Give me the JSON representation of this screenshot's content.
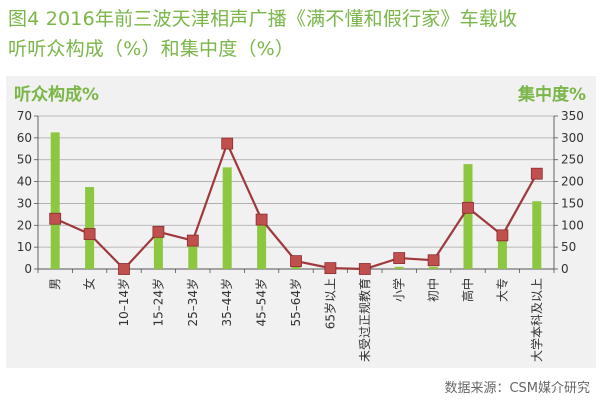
{
  "figure": {
    "title_line1": "图4  2016年前三波天津相声广播《满不懂和假行家》车载收",
    "title_line2": "听听众构成（%）和集中度（%）",
    "source": "数据来源：CSM媒介研究"
  },
  "colors": {
    "title": "#7ab648",
    "bar": "#8dc63f",
    "line": "#a0393b",
    "marker": "#c0504d",
    "plot_bg": "#f1f1f1"
  },
  "chart_data": {
    "type": "bar+line",
    "left_axis_label": "听众构成%",
    "right_axis_label": "集中度%",
    "left_ylim": [
      0,
      70
    ],
    "left_ticks": [
      0,
      10,
      20,
      30,
      40,
      50,
      60,
      70
    ],
    "right_ylim": [
      0,
      350
    ],
    "right_ticks": [
      0,
      50,
      100,
      150,
      200,
      250,
      300,
      350
    ],
    "categories": [
      "男",
      "女",
      "10–14岁",
      "15–24岁",
      "25–34岁",
      "35–44岁",
      "45–54岁",
      "55–64岁",
      "65岁以上",
      "未受过正规教育",
      "小学",
      "初中",
      "高中",
      "大专",
      "大学本科及以上"
    ],
    "series": [
      {
        "axis": "left",
        "kind": "bar",
        "values": [
          62.5,
          37.5,
          0,
          16,
          13,
          46.5,
          20,
          1.5,
          0,
          0,
          1,
          1,
          48,
          14,
          31
        ]
      },
      {
        "axis": "right",
        "kind": "line",
        "values": [
          115,
          80,
          0,
          85,
          65,
          287,
          113,
          18,
          2,
          0,
          25,
          20,
          140,
          77,
          218
        ]
      }
    ],
    "grid": "horizontal",
    "legend": "none"
  }
}
